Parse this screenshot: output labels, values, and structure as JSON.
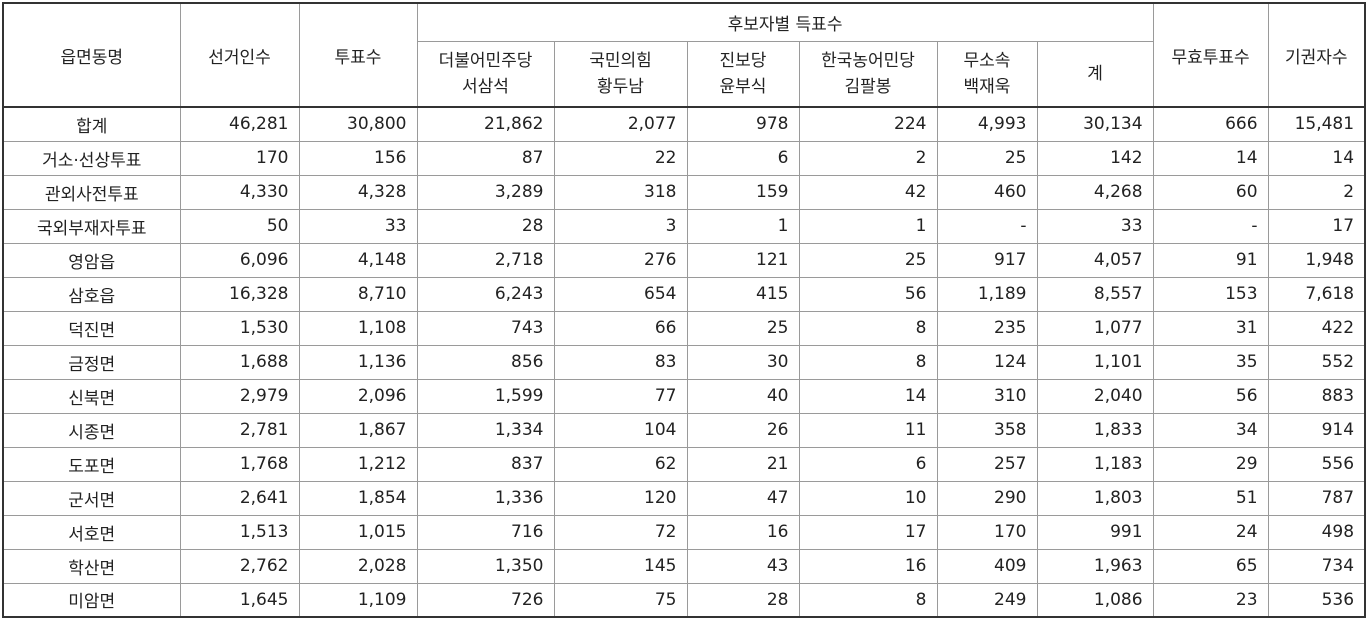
{
  "headers": {
    "district": "읍면동명",
    "electors": "선거인수",
    "voters": "투표수",
    "candidates_group": "후보자별 득표수",
    "invalid": "무효투표수",
    "abstain": "기권자수",
    "total": "계",
    "candidates": [
      {
        "party": "더불어민주당",
        "name": "서삼석"
      },
      {
        "party": "국민의힘",
        "name": "황두남"
      },
      {
        "party": "진보당",
        "name": "윤부식"
      },
      {
        "party": "한국농어민당",
        "name": "김팔봉"
      },
      {
        "party": "무소속",
        "name": "백재욱"
      }
    ]
  },
  "rows": [
    {
      "name": "합계",
      "cells": [
        "46,281",
        "30,800",
        "21,862",
        "2,077",
        "978",
        "224",
        "4,993",
        "30,134",
        "666",
        "15,481"
      ]
    },
    {
      "name": "거소·선상투표",
      "cells": [
        "170",
        "156",
        "87",
        "22",
        "6",
        "2",
        "25",
        "142",
        "14",
        "14"
      ]
    },
    {
      "name": "관외사전투표",
      "cells": [
        "4,330",
        "4,328",
        "3,289",
        "318",
        "159",
        "42",
        "460",
        "4,268",
        "60",
        "2"
      ]
    },
    {
      "name": "국외부재자투표",
      "cells": [
        "50",
        "33",
        "28",
        "3",
        "1",
        "1",
        "-",
        "33",
        "-",
        "17"
      ]
    },
    {
      "name": "영암읍",
      "cells": [
        "6,096",
        "4,148",
        "2,718",
        "276",
        "121",
        "25",
        "917",
        "4,057",
        "91",
        "1,948"
      ]
    },
    {
      "name": "삼호읍",
      "cells": [
        "16,328",
        "8,710",
        "6,243",
        "654",
        "415",
        "56",
        "1,189",
        "8,557",
        "153",
        "7,618"
      ]
    },
    {
      "name": "덕진면",
      "cells": [
        "1,530",
        "1,108",
        "743",
        "66",
        "25",
        "8",
        "235",
        "1,077",
        "31",
        "422"
      ]
    },
    {
      "name": "금정면",
      "cells": [
        "1,688",
        "1,136",
        "856",
        "83",
        "30",
        "8",
        "124",
        "1,101",
        "35",
        "552"
      ]
    },
    {
      "name": "신북면",
      "cells": [
        "2,979",
        "2,096",
        "1,599",
        "77",
        "40",
        "14",
        "310",
        "2,040",
        "56",
        "883"
      ]
    },
    {
      "name": "시종면",
      "cells": [
        "2,781",
        "1,867",
        "1,334",
        "104",
        "26",
        "11",
        "358",
        "1,833",
        "34",
        "914"
      ]
    },
    {
      "name": "도포면",
      "cells": [
        "1,768",
        "1,212",
        "837",
        "62",
        "21",
        "6",
        "257",
        "1,183",
        "29",
        "556"
      ]
    },
    {
      "name": "군서면",
      "cells": [
        "2,641",
        "1,854",
        "1,336",
        "120",
        "47",
        "10",
        "290",
        "1,803",
        "51",
        "787"
      ]
    },
    {
      "name": "서호면",
      "cells": [
        "1,513",
        "1,015",
        "716",
        "72",
        "16",
        "17",
        "170",
        "991",
        "24",
        "498"
      ]
    },
    {
      "name": "학산면",
      "cells": [
        "2,762",
        "2,028",
        "1,350",
        "145",
        "43",
        "16",
        "409",
        "1,963",
        "65",
        "734"
      ]
    },
    {
      "name": "미암면",
      "cells": [
        "1,645",
        "1,109",
        "726",
        "75",
        "28",
        "8",
        "249",
        "1,086",
        "23",
        "536"
      ]
    }
  ]
}
